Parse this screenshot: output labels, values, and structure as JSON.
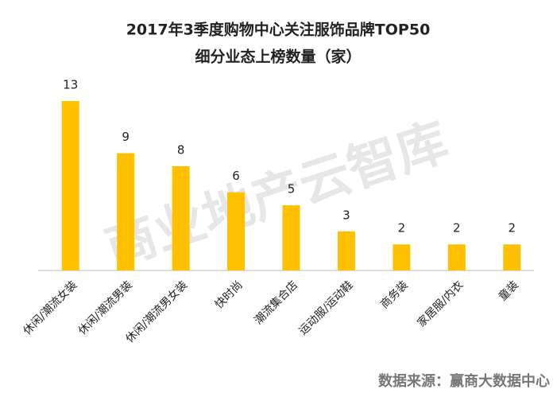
{
  "chart_data": {
    "type": "bar",
    "title": "2017年3季度购物中心关注服饰品牌TOP50",
    "subtitle": "细分业态上榜数量（家）",
    "categories": [
      "休闲/潮流女装",
      "休闲/潮流男装",
      "休闲/潮流男女装",
      "快时尚",
      "潮流集合店",
      "运动服/运动鞋",
      "商务装",
      "家居服/内衣",
      "童装"
    ],
    "values": [
      13,
      9,
      8,
      6,
      5,
      3,
      2,
      2,
      2
    ],
    "color": "#ffc000",
    "watermark": "商业地产云智库",
    "source": "数据来源：赢商大数据中心"
  }
}
